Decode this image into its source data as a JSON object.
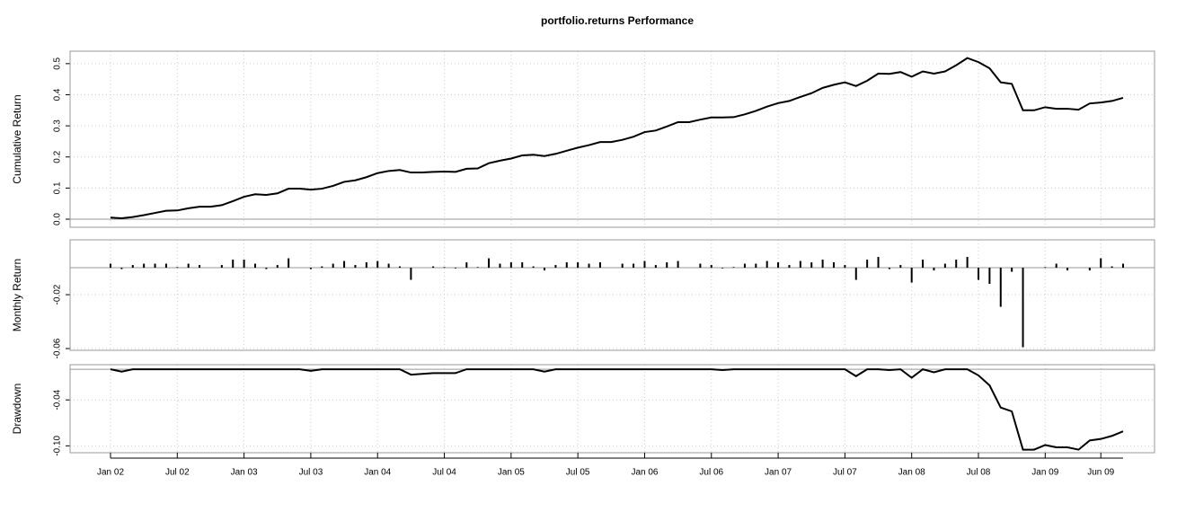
{
  "chart_data": [
    {
      "type": "line",
      "title": "portfolio.returns Performance",
      "ylabel": "Cumulative Return",
      "color": "#000000",
      "grid": true,
      "ylim": [
        -0.026,
        0.54
      ],
      "yticks": [
        {
          "value": 0,
          "label": "0.0"
        },
        0.1,
        0.2,
        0.3,
        0.4,
        0.5
      ],
      "values": [
        0.005,
        0.003,
        0.007,
        0.013,
        0.02,
        0.027,
        0.028,
        0.035,
        0.04,
        0.04,
        0.045,
        0.058,
        0.072,
        0.08,
        0.078,
        0.083,
        0.098,
        0.098,
        0.095,
        0.098,
        0.107,
        0.12,
        0.125,
        0.135,
        0.148,
        0.155,
        0.158,
        0.15,
        0.15,
        0.152,
        0.153,
        0.152,
        0.162,
        0.163,
        0.18,
        0.188,
        0.195,
        0.205,
        0.207,
        0.203,
        0.21,
        0.22,
        0.23,
        0.238,
        0.248,
        0.248,
        0.255,
        0.265,
        0.28,
        0.285,
        0.298,
        0.312,
        0.312,
        0.32,
        0.327,
        0.327,
        0.328,
        0.337,
        0.348,
        0.362,
        0.373,
        0.38,
        0.393,
        0.405,
        0.422,
        0.432,
        0.44,
        0.428,
        0.445,
        0.468,
        0.467,
        0.473,
        0.458,
        0.475,
        0.468,
        0.475,
        0.495,
        0.518,
        0.505,
        0.485,
        0.44,
        0.435,
        0.35,
        0.35,
        0.36,
        0.355,
        0.355,
        0.352,
        0.372,
        0.375,
        0.38,
        0.39
      ]
    },
    {
      "type": "bar",
      "ylabel": "Monthly Return",
      "color": "#000000",
      "grid": true,
      "ylim": [
        -0.0613,
        0.0207
      ],
      "yticks": [
        -0.06,
        -0.02
      ],
      "values": [
        0.003,
        -0.001,
        0.002,
        0.003,
        0.003,
        0.003,
        0.0005,
        0.003,
        0.002,
        0,
        0.002,
        0.006,
        0.006,
        0.003,
        -0.001,
        0.002,
        0.007,
        0,
        -0.001,
        0.001,
        0.003,
        0.005,
        0.002,
        0.004,
        0.005,
        0.003,
        0.001,
        -0.009,
        0,
        0.001,
        0.0005,
        -0.0005,
        0.004,
        0.0005,
        0.007,
        0.003,
        0.004,
        0.004,
        0.001,
        -0.002,
        0.002,
        0.004,
        0.004,
        0.003,
        0.004,
        0,
        0.003,
        0.003,
        0.005,
        0.002,
        0.004,
        0.005,
        0,
        0.003,
        0.002,
        -0.0005,
        0.0005,
        0.003,
        0.003,
        0.005,
        0.004,
        0.002,
        0.005,
        0.004,
        0.006,
        0.004,
        0.002,
        -0.009,
        0.006,
        0.008,
        -0.001,
        0.002,
        -0.011,
        0.006,
        -0.002,
        0.003,
        0.006,
        0.008,
        -0.009,
        -0.012,
        -0.029,
        -0.003,
        -0.059,
        0,
        0.0005,
        0.003,
        -0.002,
        0,
        -0.002,
        0.007,
        0.001,
        0.003
      ]
    },
    {
      "type": "line",
      "ylabel": "Drawdown",
      "color": "#000000",
      "grid": true,
      "ylim": [
        -0.109,
        0.006
      ],
      "yticks": [
        {
          "value": -0.1,
          "label": "-0.10"
        },
        -0.04
      ],
      "categories": [
        "Jan 02",
        null,
        null,
        null,
        null,
        null,
        "Jul 02",
        null,
        null,
        null,
        null,
        null,
        "Jan 03",
        null,
        null,
        null,
        null,
        null,
        "Jul 03",
        null,
        null,
        null,
        null,
        null,
        "Jan 04",
        null,
        null,
        null,
        null,
        null,
        "Jul 04",
        null,
        null,
        null,
        null,
        null,
        "Jan 05",
        null,
        null,
        null,
        null,
        null,
        "Jul 05",
        null,
        null,
        null,
        null,
        null,
        "Jan 06",
        null,
        null,
        null,
        null,
        null,
        "Jul 06",
        null,
        null,
        null,
        null,
        null,
        "Jan 07",
        null,
        null,
        null,
        null,
        null,
        "Jul 07",
        null,
        null,
        null,
        null,
        null,
        "Jan 08",
        null,
        null,
        null,
        null,
        null,
        "Jul 08",
        null,
        null,
        null,
        null,
        null,
        "Jan 09",
        null,
        null,
        null,
        null,
        "Jun 09",
        null,
        null
      ],
      "values": [
        0,
        -0.003,
        0,
        0,
        0,
        0,
        0,
        0,
        0,
        0,
        0,
        0,
        0,
        0,
        0,
        0,
        0,
        0,
        -0.002,
        0,
        0,
        0,
        0,
        0,
        0,
        0,
        0,
        -0.007,
        -0.006,
        -0.005,
        -0.005,
        -0.005,
        0,
        0,
        0,
        0,
        0,
        0,
        0,
        -0.003,
        0,
        0,
        0,
        0,
        0,
        0,
        0,
        0,
        0,
        0,
        0,
        0,
        0,
        0,
        0,
        -0.001,
        0,
        0,
        0,
        0,
        0,
        0,
        0,
        0,
        0,
        0,
        0,
        -0.009,
        0,
        0,
        -0.001,
        0,
        -0.011,
        0,
        -0.004,
        0,
        0,
        0,
        -0.008,
        -0.021,
        -0.05,
        -0.055,
        -0.105,
        -0.105,
        -0.099,
        -0.102,
        -0.102,
        -0.105,
        -0.093,
        -0.091,
        -0.087,
        -0.081
      ]
    }
  ]
}
